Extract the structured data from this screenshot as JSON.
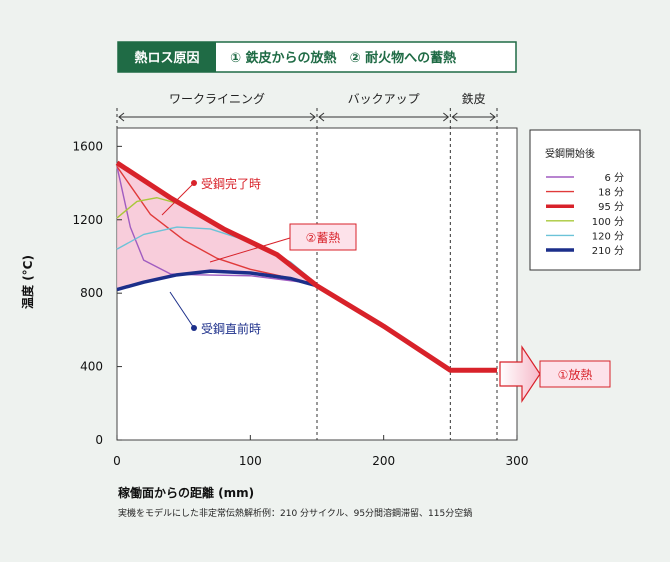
{
  "header": {
    "label": "熱ロス原因",
    "items": "① 鉄皮からの放熱　② 耐火物への蓄熱"
  },
  "zones": [
    "ワークライニング",
    "バックアップ",
    "鉄皮"
  ],
  "annotations": {
    "after_label": "受鋼完了時",
    "before_label": "受鋼直前時",
    "storage_label": "②蓄熱",
    "release_label": "①放熱"
  },
  "colors": {
    "header_bg": "#1f6b45",
    "accent_red": "#d8222a",
    "accent_blue": "#1c2f8a",
    "shade": "#f5c6d6"
  },
  "chart_data": {
    "type": "line",
    "xlabel": "稼働面からの距離 (mm)",
    "ylabel": "温度 (°C)",
    "xlim": [
      0,
      300
    ],
    "ylim": [
      0,
      1700
    ],
    "x_ticks": [
      0,
      100,
      200,
      300
    ],
    "y_ticks": [
      0,
      400,
      800,
      1200,
      1600
    ],
    "zone_boundaries": [
      150,
      250,
      285
    ],
    "footnote": "実機をモデルにした非定常伝熱解析例：210 分サイクル、95分間溶鋼滞留、115分空鍋",
    "legend_title": "受鋼開始後",
    "legend_position": "right",
    "series": [
      {
        "name": "6 分",
        "color": "#a05cc0",
        "width": 1.4,
        "points": [
          [
            0,
            1490
          ],
          [
            10,
            1160
          ],
          [
            20,
            980
          ],
          [
            40,
            905
          ],
          [
            60,
            900
          ],
          [
            100,
            895
          ],
          [
            150,
            850
          ]
        ]
      },
      {
        "name": "18 分",
        "color": "#e03a3a",
        "width": 1.4,
        "points": [
          [
            0,
            1490
          ],
          [
            25,
            1230
          ],
          [
            50,
            1090
          ],
          [
            75,
            990
          ],
          [
            100,
            930
          ],
          [
            150,
            850
          ]
        ]
      },
      {
        "name": "95 分",
        "color": "#d8222a",
        "width": 5,
        "points": [
          [
            0,
            1510
          ],
          [
            40,
            1320
          ],
          [
            80,
            1150
          ],
          [
            120,
            1010
          ],
          [
            150,
            840
          ],
          [
            200,
            620
          ],
          [
            250,
            380
          ],
          [
            285,
            380
          ]
        ]
      },
      {
        "name": "100 分",
        "color": "#a8c83a",
        "width": 1.4,
        "points": [
          [
            0,
            1210
          ],
          [
            15,
            1300
          ],
          [
            30,
            1320
          ],
          [
            50,
            1280
          ],
          [
            80,
            1150
          ],
          [
            120,
            1000
          ],
          [
            150,
            850
          ]
        ]
      },
      {
        "name": "120 分",
        "color": "#6cc3d8",
        "width": 1.4,
        "points": [
          [
            0,
            1040
          ],
          [
            20,
            1120
          ],
          [
            45,
            1160
          ],
          [
            70,
            1150
          ],
          [
            100,
            1080
          ],
          [
            130,
            970
          ],
          [
            150,
            850
          ]
        ]
      },
      {
        "name": "210 分",
        "color": "#1c2f8a",
        "width": 3.5,
        "points": [
          [
            0,
            820
          ],
          [
            20,
            860
          ],
          [
            45,
            900
          ],
          [
            70,
            920
          ],
          [
            100,
            910
          ],
          [
            130,
            880
          ],
          [
            150,
            840
          ],
          [
            200,
            620
          ],
          [
            250,
            380
          ]
        ]
      }
    ]
  }
}
